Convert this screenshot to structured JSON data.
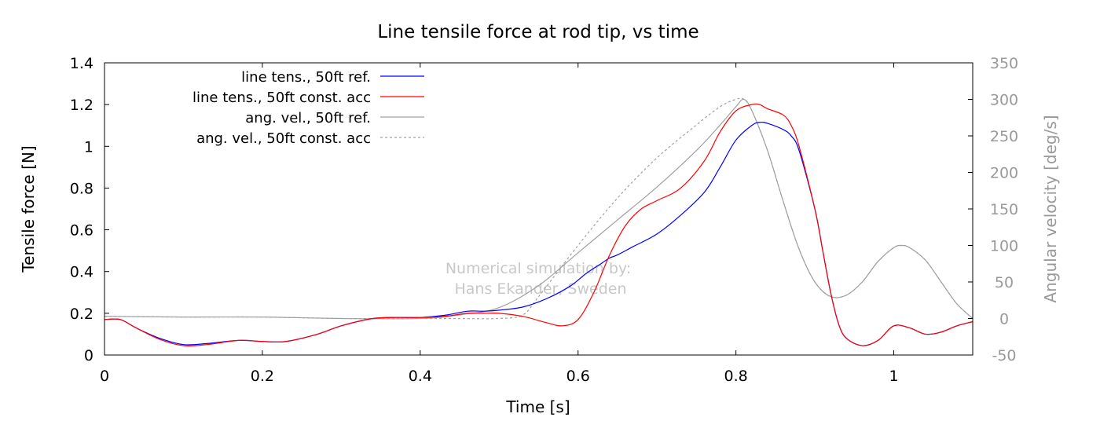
{
  "chart_data": {
    "type": "line",
    "title": "Line tensile force at rod tip, vs time",
    "xlabel": "Time [s]",
    "ylabel": "Tensile force [N]",
    "y2label": "Angular velocity [deg/s]",
    "xlim": [
      0,
      1.1
    ],
    "ylim": [
      0,
      1.4
    ],
    "y2lim": [
      -50,
      350
    ],
    "xticks": [
      0,
      0.2,
      0.4,
      0.6,
      0.8,
      1
    ],
    "xtick_labels": [
      "0",
      "0.2",
      "0.4",
      "0.6",
      "0.8",
      "1"
    ],
    "yticks": [
      0,
      0.2,
      0.4,
      0.6,
      0.8,
      1,
      1.2,
      1.4
    ],
    "ytick_labels": [
      "0",
      "0.2",
      "0.4",
      "0.6",
      "0.8",
      "1",
      "1.2",
      "1.4"
    ],
    "y2ticks": [
      -50,
      0,
      50,
      100,
      150,
      200,
      250,
      300,
      350
    ],
    "y2tick_labels": [
      "-50",
      "0",
      "50",
      "100",
      "150",
      "200",
      "250",
      "300",
      "350"
    ],
    "grid": false,
    "legend_position": "top-left",
    "watermark": [
      "Numerical simulation by:",
      "Hans Ekander, Sweden"
    ],
    "series": [
      {
        "name": "line tens., 50ft ref.",
        "axis": "y1",
        "color": "#0000ff",
        "dash": "solid",
        "x": [
          0,
          0.02,
          0.04,
          0.07,
          0.1,
          0.13,
          0.17,
          0.2,
          0.23,
          0.27,
          0.3,
          0.34,
          0.37,
          0.4,
          0.43,
          0.46,
          0.48,
          0.5,
          0.53,
          0.56,
          0.59,
          0.61,
          0.63,
          0.64,
          0.65,
          0.67,
          0.7,
          0.73,
          0.76,
          0.78,
          0.8,
          0.82,
          0.83,
          0.84,
          0.86,
          0.87,
          0.88,
          0.9,
          0.91,
          0.92,
          0.93,
          0.94,
          0.96,
          0.98,
          1.0,
          1.02,
          1.04,
          1.06,
          1.08,
          1.1
        ],
        "values": [
          0.17,
          0.17,
          0.13,
          0.08,
          0.05,
          0.055,
          0.07,
          0.065,
          0.065,
          0.1,
          0.14,
          0.175,
          0.18,
          0.18,
          0.19,
          0.21,
          0.21,
          0.215,
          0.23,
          0.27,
          0.33,
          0.39,
          0.44,
          0.465,
          0.48,
          0.52,
          0.58,
          0.67,
          0.78,
          0.9,
          1.03,
          1.1,
          1.115,
          1.11,
          1.08,
          1.05,
          0.98,
          0.7,
          0.5,
          0.3,
          0.15,
          0.08,
          0.045,
          0.07,
          0.14,
          0.13,
          0.1,
          0.11,
          0.14,
          0.16
        ]
      },
      {
        "name": "line tens., 50ft const. acc",
        "axis": "y1",
        "color": "#ff0000",
        "dash": "solid",
        "x": [
          0,
          0.02,
          0.04,
          0.07,
          0.1,
          0.13,
          0.17,
          0.2,
          0.23,
          0.27,
          0.3,
          0.34,
          0.37,
          0.4,
          0.43,
          0.46,
          0.48,
          0.5,
          0.53,
          0.56,
          0.58,
          0.6,
          0.62,
          0.64,
          0.66,
          0.68,
          0.7,
          0.73,
          0.76,
          0.78,
          0.8,
          0.82,
          0.83,
          0.84,
          0.86,
          0.87,
          0.88,
          0.9,
          0.91,
          0.92,
          0.93,
          0.94,
          0.96,
          0.98,
          1.0,
          1.02,
          1.04,
          1.06,
          1.08,
          1.1
        ],
        "values": [
          0.17,
          0.17,
          0.13,
          0.075,
          0.045,
          0.05,
          0.07,
          0.065,
          0.065,
          0.1,
          0.14,
          0.175,
          0.18,
          0.18,
          0.185,
          0.2,
          0.2,
          0.2,
          0.185,
          0.155,
          0.14,
          0.17,
          0.3,
          0.48,
          0.62,
          0.7,
          0.74,
          0.8,
          0.93,
          1.07,
          1.17,
          1.2,
          1.2,
          1.18,
          1.15,
          1.1,
          1.0,
          0.7,
          0.5,
          0.3,
          0.15,
          0.08,
          0.045,
          0.07,
          0.14,
          0.13,
          0.1,
          0.11,
          0.14,
          0.16
        ]
      },
      {
        "name": "ang. vel., 50ft ref.",
        "axis": "y2",
        "color": "#a0a0a0",
        "dash": "solid",
        "x": [
          0,
          0.1,
          0.2,
          0.3,
          0.4,
          0.45,
          0.5,
          0.55,
          0.6,
          0.65,
          0.7,
          0.75,
          0.78,
          0.8,
          0.81,
          0.82,
          0.84,
          0.86,
          0.88,
          0.9,
          0.92,
          0.94,
          0.96,
          0.98,
          1.0,
          1.01,
          1.02,
          1.04,
          1.06,
          1.08,
          1.1
        ],
        "values": [
          3,
          2,
          2,
          0,
          0,
          5,
          15,
          45,
          90,
          135,
          180,
          230,
          265,
          290,
          300,
          285,
          230,
          160,
          95,
          50,
          30,
          32,
          50,
          78,
          97,
          100,
          97,
          80,
          50,
          20,
          0
        ]
      },
      {
        "name": "ang. vel., 50ft const. acc",
        "axis": "y2",
        "color": "#a0a0a0",
        "dash": "dashed",
        "x": [
          0,
          0.1,
          0.2,
          0.3,
          0.4,
          0.45,
          0.5,
          0.53,
          0.55,
          0.6,
          0.65,
          0.7,
          0.75,
          0.78,
          0.8,
          0.81,
          0.82,
          0.84,
          0.86,
          0.88,
          0.9,
          0.92,
          0.94,
          0.96,
          0.98,
          1.0,
          1.01,
          1.02,
          1.04,
          1.06,
          1.08,
          1.1
        ],
        "values": [
          3,
          2,
          2,
          0,
          0,
          0,
          0,
          5,
          30,
          100,
          165,
          220,
          265,
          290,
          300,
          300,
          285,
          230,
          160,
          95,
          50,
          30,
          32,
          50,
          78,
          97,
          100,
          97,
          80,
          50,
          20,
          0
        ]
      }
    ]
  }
}
